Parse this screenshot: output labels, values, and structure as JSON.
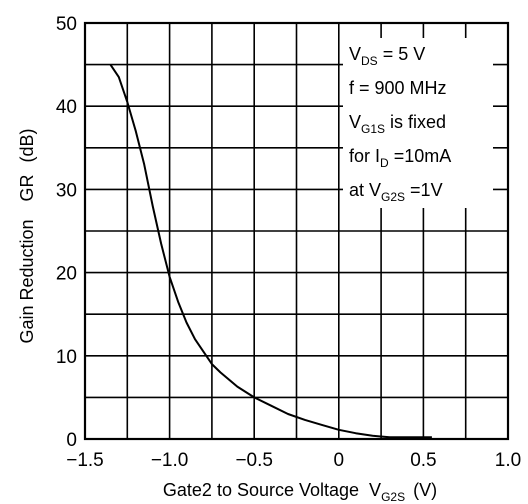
{
  "chart_data": {
    "type": "line",
    "x_ticks": [
      "-1.5",
      "-1.0",
      "-0.5",
      "0",
      "0.5",
      "1.0"
    ],
    "y_ticks": [
      "0",
      "10",
      "20",
      "30",
      "40",
      "50"
    ],
    "xlim": [
      -1.5,
      1.0
    ],
    "ylim": [
      0,
      50
    ],
    "x_grid_step": 0.25,
    "y_grid_step": 5,
    "grid": true,
    "xlabel": {
      "text": "Gate2 to Source Voltage",
      "symbol": "V",
      "symbol_sub": "G2S",
      "unit": "(V)"
    },
    "ylabel": {
      "text": "Gain Reduction",
      "symbol": "GR",
      "unit": "(dB)"
    },
    "annotation": {
      "line1": {
        "main": "V",
        "sub": "DS",
        "rest": " = 5 V"
      },
      "line2": "f = 900 MHz",
      "line3": {
        "main": "V",
        "sub": "G1S",
        "rest": " is fixed"
      },
      "line4": {
        "main": "for I",
        "sub": "D",
        "rest": " =10mA"
      },
      "line5": {
        "main": "at V",
        "sub": "G2S",
        "rest": " =1V"
      }
    },
    "series": [
      {
        "x": [
          -1.35,
          -1.3,
          -1.25,
          -1.2,
          -1.15,
          -1.1,
          -1.05,
          -1.0,
          -0.95,
          -0.9,
          -0.85,
          -0.8,
          -0.75,
          -0.7,
          -0.6,
          -0.5,
          -0.4,
          -0.3,
          -0.2,
          -0.1,
          0.0,
          0.1,
          0.2,
          0.3,
          0.4,
          0.5,
          0.55
        ],
        "y": [
          45,
          43.5,
          40.5,
          37,
          33,
          28,
          23.5,
          19.5,
          16.5,
          14,
          12,
          10.5,
          9,
          8,
          6.3,
          5,
          4,
          3,
          2.3,
          1.7,
          1.1,
          0.7,
          0.4,
          0.2,
          0.2,
          0.2,
          0.2
        ]
      }
    ]
  }
}
